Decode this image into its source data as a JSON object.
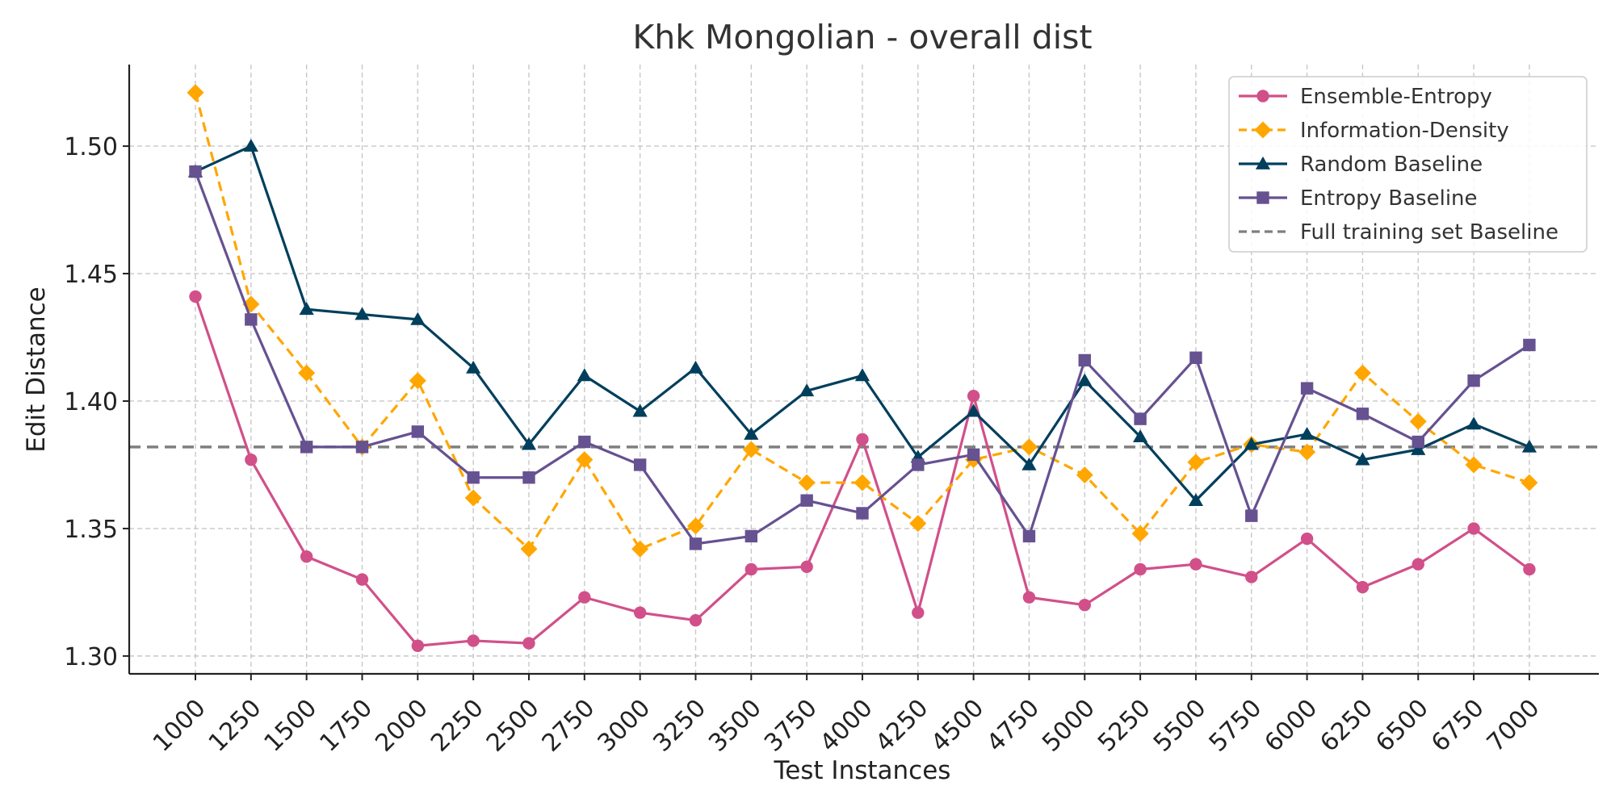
{
  "chart_data": {
    "type": "line",
    "title": "Khk Mongolian - overall dist",
    "xlabel": "Test Instances",
    "ylabel": "Edit Distance",
    "x": [
      1000,
      1250,
      1500,
      1750,
      2000,
      2250,
      2500,
      2750,
      3000,
      3250,
      3500,
      3750,
      4000,
      4250,
      4500,
      4750,
      5000,
      5250,
      5500,
      5750,
      6000,
      6250,
      6500,
      6750,
      7000
    ],
    "x_tick_labels": [
      "1000",
      "1250",
      "1500",
      "1750",
      "2000",
      "2250",
      "2500",
      "2750",
      "3000",
      "3250",
      "3500",
      "3750",
      "4000",
      "4250",
      "4500",
      "4750",
      "5000",
      "5250",
      "5500",
      "5750",
      "6000",
      "6250",
      "6500",
      "6750",
      "7000"
    ],
    "ylim": [
      1.293,
      1.532
    ],
    "y_ticks": [
      1.3,
      1.35,
      1.4,
      1.45,
      1.5
    ],
    "y_tick_labels": [
      "1.30",
      "1.35",
      "1.40",
      "1.45",
      "1.50"
    ],
    "grid": true,
    "legend_position": "top-right",
    "series": [
      {
        "name": "Ensemble-Entropy",
        "color": "#d1508a",
        "marker": "circle",
        "dash": "solid",
        "values": [
          1.441,
          1.377,
          1.339,
          1.33,
          1.304,
          1.306,
          1.305,
          1.323,
          1.317,
          1.314,
          1.334,
          1.335,
          1.385,
          1.317,
          1.402,
          1.323,
          1.32,
          1.334,
          1.336,
          1.331,
          1.346,
          1.327,
          1.336,
          1.35,
          1.334
        ]
      },
      {
        "name": "Information-Density",
        "color": "#ffa600",
        "marker": "diamond",
        "dash": "dashed",
        "values": [
          1.521,
          1.438,
          1.411,
          1.382,
          1.408,
          1.362,
          1.342,
          1.377,
          1.342,
          1.351,
          1.381,
          1.368,
          1.368,
          1.352,
          1.377,
          1.382,
          1.371,
          1.348,
          1.376,
          1.383,
          1.38,
          1.411,
          1.392,
          1.375,
          1.368
        ]
      },
      {
        "name": "Random Baseline",
        "color": "#003f5c",
        "marker": "triangle",
        "dash": "solid",
        "values": [
          1.49,
          1.5,
          1.436,
          1.434,
          1.432,
          1.413,
          1.383,
          1.41,
          1.396,
          1.413,
          1.387,
          1.404,
          1.41,
          1.378,
          1.396,
          1.375,
          1.408,
          1.386,
          1.361,
          1.383,
          1.387,
          1.377,
          1.381,
          1.391,
          1.382
        ]
      },
      {
        "name": "Entropy Baseline",
        "color": "#665191",
        "marker": "square",
        "dash": "solid",
        "values": [
          1.49,
          1.432,
          1.382,
          1.382,
          1.388,
          1.37,
          1.37,
          1.384,
          1.375,
          1.344,
          1.347,
          1.361,
          1.356,
          1.375,
          1.379,
          1.347,
          1.416,
          1.393,
          1.417,
          1.355,
          1.405,
          1.395,
          1.384,
          1.408,
          1.422
        ]
      }
    ],
    "reference_lines": [
      {
        "name": "Full training set Baseline",
        "y": 1.382,
        "color": "#7f7f7f",
        "dash": "dashed"
      }
    ]
  }
}
